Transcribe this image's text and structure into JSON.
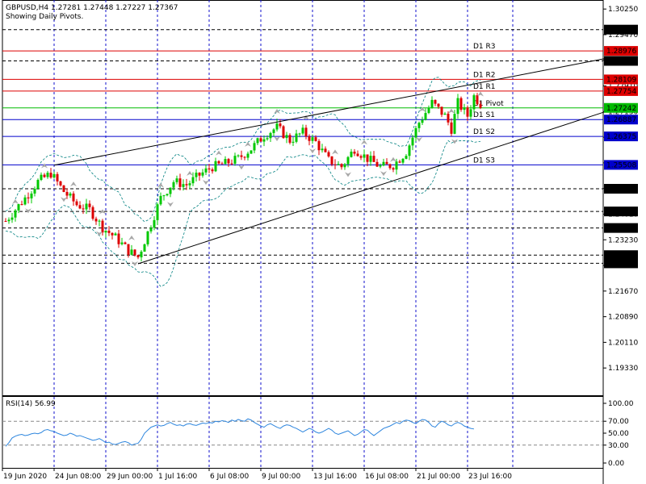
{
  "header": {
    "title": "GBPUSD,H4  1.27281 1.27448 1.27227 1.27367",
    "subtitle": "Showing Daily Pivots."
  },
  "rsi": {
    "label": "RSI(14) 56.99"
  },
  "colors": {
    "bull": "#00c800",
    "bear": "#dd0000",
    "grid": "#1010cc",
    "resistance": "#dd0000",
    "support": "#0000cc",
    "pivot": "#00bb00",
    "envelope": "#008080",
    "trend": "#000000",
    "rsi_line": "#2e86de"
  },
  "chart_data": [
    {
      "type": "candlestick",
      "title": "GBPUSD,H4",
      "ylim": [
        1.185,
        1.305
      ],
      "price_ticks": [
        "1.30250",
        "1.29470",
        "1.28690",
        "1.27910",
        "1.27130",
        "1.26350",
        "1.25570",
        "1.24790",
        "1.24010",
        "1.23230",
        "1.22450",
        "1.21670",
        "1.20890",
        "1.20110",
        "1.19330"
      ],
      "tagged_levels": [
        {
          "value": "1.29624",
          "style": "dash",
          "color": "#000000"
        },
        {
          "value": "1.28976",
          "style": "solid",
          "color": "#dd0000",
          "name": "D1 R3"
        },
        {
          "value": "1.28672",
          "style": "dash",
          "color": "#000000"
        },
        {
          "value": "1.28109",
          "style": "solid",
          "color": "#dd0000",
          "name": "D1 R2"
        },
        {
          "value": "1.27754",
          "style": "solid",
          "color": "#dd0000",
          "name": "D1 R1"
        },
        {
          "value": "1.27242",
          "style": "solid",
          "color": "#00bb00",
          "name": "D1 Pivot"
        },
        {
          "value": "1.26887",
          "style": "solid",
          "color": "#0000cc",
          "name": "D1 S1"
        },
        {
          "value": "1.26375",
          "style": "solid",
          "color": "#0000cc",
          "name": "D1 S2"
        },
        {
          "value": "1.25508",
          "style": "solid",
          "color": "#0000cc",
          "name": "D1 S3"
        },
        {
          "value": "1.24782",
          "style": "dash",
          "color": "#000000"
        },
        {
          "value": "1.24092",
          "style": "dash",
          "color": "#000000"
        },
        {
          "value": "1.23589",
          "style": "dash",
          "color": "#000000"
        },
        {
          "value": "1.22763",
          "style": "dash",
          "color": "#000000"
        },
        {
          "value": "1.22514",
          "style": "dash",
          "color": "#000000"
        }
      ],
      "x_labels": [
        "19 Jun 2020",
        "24 Jun 08:00",
        "29 Jun 00:00",
        "1 Jul 16:00",
        "6 Jul 08:00",
        "9 Jul 00:00",
        "13 Jul 16:00",
        "16 Jul 08:00",
        "21 Jul 00:00",
        "23 Jul 16:00"
      ],
      "candle_count": 148,
      "close_path": [
        [
          0,
          1.238
        ],
        [
          6,
          1.245
        ],
        [
          10,
          1.25
        ],
        [
          14,
          1.2525
        ],
        [
          18,
          1.247
        ],
        [
          22,
          1.243
        ],
        [
          26,
          1.2415
        ],
        [
          30,
          1.236
        ],
        [
          34,
          1.233
        ],
        [
          38,
          1.229
        ],
        [
          41,
          1.227
        ],
        [
          44,
          1.2345
        ],
        [
          48,
          1.245
        ],
        [
          52,
          1.25
        ],
        [
          56,
          1.249
        ],
        [
          60,
          1.252
        ],
        [
          64,
          1.2545
        ],
        [
          68,
          1.2555
        ],
        [
          72,
          1.257
        ],
        [
          76,
          1.26
        ],
        [
          80,
          1.264
        ],
        [
          84,
          1.2665
        ],
        [
          88,
          1.2625
        ],
        [
          92,
          1.265
        ],
        [
          96,
          1.262
        ],
        [
          100,
          1.2565
        ],
        [
          104,
          1.2545
        ],
        [
          108,
          1.26
        ],
        [
          112,
          1.257
        ],
        [
          116,
          1.2545
        ],
        [
          120,
          1.255
        ],
        [
          124,
          1.259
        ],
        [
          128,
          1.268
        ],
        [
          132,
          1.274
        ],
        [
          136,
          1.27
        ],
        [
          138,
          1.266
        ],
        [
          140,
          1.274
        ],
        [
          143,
          1.27
        ],
        [
          145,
          1.276
        ],
        [
          147,
          1.27367
        ]
      ],
      "trendlines": [
        {
          "from": [
            15,
            1.255
          ],
          "to": [
            187,
            1.2877
          ]
        },
        {
          "from": [
            41,
            1.225
          ],
          "to": [
            187,
            1.2717
          ]
        }
      ]
    },
    {
      "type": "line",
      "title": "RSI(14) 56.99",
      "ylim": [
        0,
        100
      ],
      "ticks": [
        "100.00",
        "70.00",
        "50.00",
        "30.00",
        "0.00"
      ],
      "values": [
        28,
        34,
        42,
        45,
        47,
        48,
        46,
        47,
        49,
        50,
        49,
        51,
        55,
        56,
        54,
        53,
        50,
        48,
        46,
        47,
        50,
        48,
        45,
        46,
        44,
        42,
        40,
        38,
        39,
        41,
        38,
        34,
        35,
        32,
        31,
        33,
        35,
        36,
        34,
        30,
        32,
        33,
        40,
        50,
        55,
        60,
        62,
        64,
        62,
        63,
        66,
        68,
        65,
        63,
        64,
        62,
        65,
        66,
        64,
        63,
        65,
        67,
        66,
        68,
        67,
        70,
        69,
        71,
        70,
        68,
        72,
        70,
        73,
        71,
        70,
        74,
        72,
        68,
        65,
        62,
        60,
        64,
        66,
        63,
        60,
        58,
        62,
        64,
        63,
        60,
        58,
        55,
        52,
        55,
        58,
        56,
        52,
        50,
        52,
        55,
        58,
        55,
        50,
        48,
        50,
        52,
        54,
        50,
        46,
        48,
        52,
        56,
        55,
        50,
        46,
        50,
        54,
        58,
        60,
        62,
        65,
        68,
        66,
        70,
        72,
        71,
        68,
        66,
        70,
        73,
        72,
        68,
        62,
        60,
        66,
        70,
        68,
        64,
        62,
        66,
        68,
        66,
        62,
        60,
        58,
        57
      ]
    }
  ]
}
